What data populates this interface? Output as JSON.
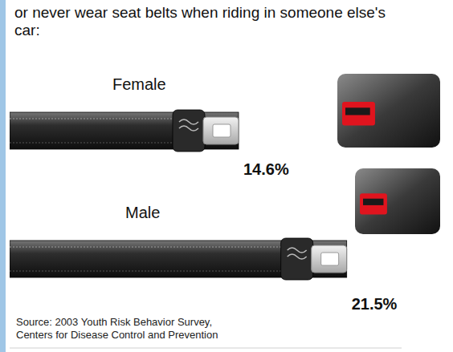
{
  "chart_data": {
    "type": "bar",
    "orientation": "horizontal",
    "title": "or never wear seat belts when riding in someone else's car:",
    "categories": [
      "Female",
      "Male"
    ],
    "values": [
      14.6,
      21.5
    ],
    "value_labels": [
      "14.6%",
      "21.5%"
    ],
    "data_labels": true,
    "tick_labels": false,
    "xlim": [
      0,
      25
    ],
    "color": "#2e2e2e",
    "source": "Source: 2003 Youth Risk Behavior Survey, Centers for Disease Control and Prevention"
  }
}
